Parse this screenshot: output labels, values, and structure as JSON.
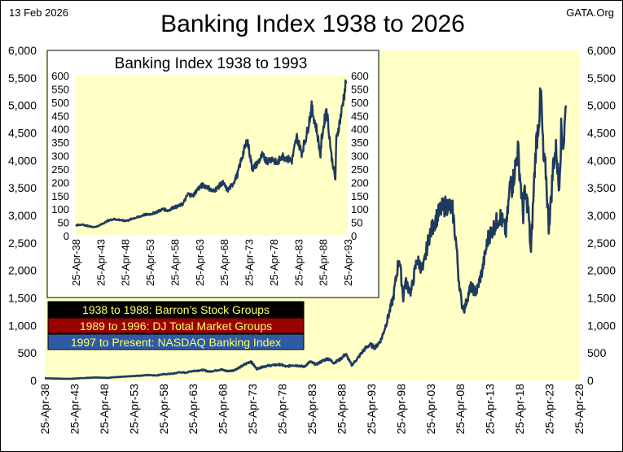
{
  "header": {
    "date": "13 Feb 2026",
    "source": "GATA.Org"
  },
  "colors": {
    "plot_background": "#ffffc6",
    "line": "#1f3a5f",
    "legend_1_bg": "#000000",
    "legend_1_text": "#ffff66",
    "legend_2_bg": "#990000",
    "legend_2_text": "#ffff66",
    "legend_3_bg": "#2e5aa6",
    "legend_3_text": "#ffff66"
  },
  "chart_data": [
    {
      "type": "line",
      "title": "Banking Index 1938 to 2026",
      "xlabel": "",
      "ylabel": "",
      "ylim": [
        0,
        6000
      ],
      "y_ticks": [
        "0",
        "500",
        "1,000",
        "1,500",
        "2,000",
        "2,500",
        "3,000",
        "3,500",
        "4,000",
        "4,500",
        "5,000",
        "5,500",
        "6,000"
      ],
      "x_range": [
        1938.3,
        2028.3
      ],
      "x_ticks": [
        "25-Apr-38",
        "25-Apr-43",
        "25-Apr-48",
        "25-Apr-53",
        "25-Apr-58",
        "25-Apr-63",
        "25-Apr-68",
        "25-Apr-73",
        "25-Apr-78",
        "25-Apr-83",
        "25-Apr-88",
        "25-Apr-93",
        "25-Apr-98",
        "25-Apr-03",
        "25-Apr-08",
        "25-Apr-13",
        "25-Apr-18",
        "25-Apr-23",
        "25-Apr-28"
      ],
      "grid": false,
      "y_axis_both_sides": true,
      "legend": {
        "placement": "bottom-left",
        "entries": [
          "1938 to 1988: Barron's Stock Groups",
          "1989 to 1996: DJ Total Market Groups",
          "1997 to Present: NASDAQ Banking Index"
        ]
      },
      "series": [
        {
          "x": [
            1938.3,
            1940,
            1942,
            1943,
            1945,
            1946,
            1947,
            1949,
            1950,
            1952,
            1954,
            1956,
            1957,
            1958,
            1960,
            1961,
            1962,
            1963,
            1965,
            1966,
            1967,
            1968,
            1969,
            1970,
            1971,
            1972,
            1973,
            1974,
            1975,
            1976,
            1978,
            1979,
            1980,
            1981,
            1982,
            1983,
            1984,
            1985,
            1986,
            1987,
            1988,
            1989,
            1990,
            1991,
            1992,
            1993,
            1994,
            1995,
            1996,
            1997,
            1998,
            1998.7,
            1999,
            2000,
            2001,
            2002,
            2003,
            2004,
            2005,
            2006,
            2007,
            2007.6,
            2008,
            2008.5,
            2009,
            2009.5,
            2010,
            2011,
            2012,
            2013,
            2014,
            2015,
            2016,
            2016.9,
            2017,
            2018,
            2018.9,
            2019,
            2019.7,
            2020.2,
            2020.6,
            2021,
            2021.9,
            2022.3,
            2022.7,
            2023.2,
            2023.6,
            2024,
            2024.5,
            2024.9,
            2025.3,
            2025.7,
            2026.1
          ],
          "y": [
            40,
            35,
            30,
            32,
            45,
            50,
            55,
            48,
            60,
            70,
            85,
            100,
            90,
            110,
            125,
            150,
            140,
            170,
            190,
            160,
            180,
            200,
            170,
            180,
            230,
            290,
            350,
            210,
            250,
            270,
            290,
            250,
            280,
            270,
            250,
            340,
            290,
            350,
            400,
            320,
            380,
            480,
            280,
            400,
            550,
            650,
            600,
            750,
            1100,
            1500,
            2250,
            1500,
            1800,
            1600,
            2200,
            2000,
            2600,
            2900,
            3100,
            3200,
            3100,
            2500,
            1900,
            1400,
            1300,
            1500,
            1700,
            1600,
            2000,
            2600,
            2800,
            3000,
            2700,
            3800,
            3500,
            4200,
            3000,
            3400,
            3200,
            2300,
            3300,
            4200,
            5200,
            4000,
            3800,
            2800,
            3300,
            4000,
            4200,
            3500,
            4500,
            4300,
            5000
          ]
        }
      ]
    },
    {
      "type": "line",
      "title": "Banking Index 1938 to 1993",
      "xlabel": "",
      "ylabel": "",
      "ylim": [
        0,
        600
      ],
      "y_ticks": [
        "0",
        "50",
        "100",
        "150",
        "200",
        "250",
        "300",
        "350",
        "400",
        "450",
        "500",
        "550",
        "600"
      ],
      "x_range": [
        1938.3,
        1993.3
      ],
      "x_ticks": [
        "25-Apr-38",
        "25-Apr-43",
        "25-Apr-48",
        "25-Apr-53",
        "25-Apr-58",
        "25-Apr-63",
        "25-Apr-68",
        "25-Apr-73",
        "25-Apr-78",
        "25-Apr-83",
        "25-Apr-88",
        "25-Apr-93"
      ],
      "grid": false,
      "y_axis_both_sides": true,
      "series": [
        {
          "x": [
            1938.3,
            1939,
            1940,
            1941,
            1942,
            1943,
            1944,
            1945,
            1946,
            1947,
            1948,
            1949,
            1950,
            1951,
            1952,
            1953,
            1954,
            1955,
            1956,
            1957,
            1958,
            1959,
            1960,
            1961,
            1962,
            1963,
            1964,
            1965,
            1966,
            1967,
            1968,
            1969,
            1970,
            1971,
            1972,
            1973,
            1974,
            1975,
            1976,
            1977,
            1978,
            1979,
            1980,
            1981,
            1982,
            1983,
            1984,
            1985,
            1986,
            1987,
            1987.8,
            1988,
            1989,
            1990,
            1990.8,
            1991,
            1992,
            1993
          ],
          "y": [
            38,
            42,
            40,
            36,
            32,
            38,
            48,
            58,
            62,
            60,
            56,
            58,
            66,
            70,
            78,
            80,
            84,
            92,
            100,
            94,
            106,
            110,
            120,
            156,
            150,
            176,
            190,
            182,
            166,
            180,
            200,
            170,
            192,
            230,
            300,
            360,
            250,
            270,
            300,
            280,
            290,
            270,
            300,
            290,
            280,
            370,
            310,
            380,
            480,
            400,
            300,
            360,
            480,
            300,
            210,
            360,
            460,
            580
          ]
        }
      ]
    }
  ]
}
